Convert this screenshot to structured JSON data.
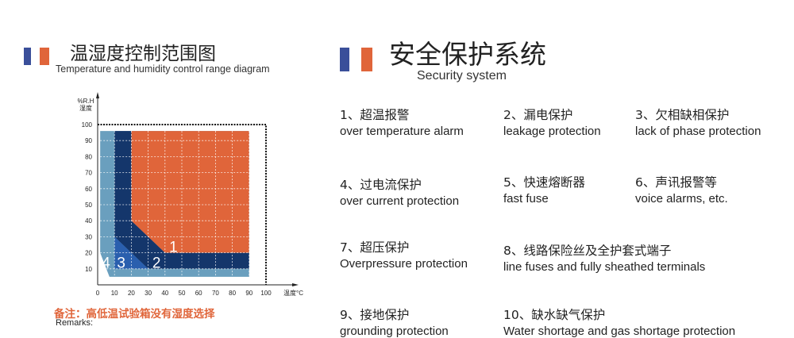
{
  "colors": {
    "blue": "#3a4f9a",
    "orange": "#e0653a",
    "light_blue": "#6a9fbe",
    "navy": "#14366b",
    "mid_blue": "#2a5fae"
  },
  "left_section": {
    "title": "温湿度控制范围图",
    "subtitle": "Temperature and humidity control range diagram",
    "note": "备注：高低温试验箱没有湿度选择",
    "remarks": "Remarks:"
  },
  "right_section": {
    "title": "安全保护系统",
    "subtitle": "Security system",
    "items": [
      {
        "cn": "1、超温报警",
        "en": "over temperature alarm"
      },
      {
        "cn": "2、漏电保护",
        "en": "leakage protection"
      },
      {
        "cn": "3、欠相缺相保护",
        "en": "lack of phase protection"
      },
      {
        "cn": "4、过电流保护",
        "en": "over current protection"
      },
      {
        "cn": "5、快速熔断器",
        "en": "fast fuse"
      },
      {
        "cn": "6、声讯报警等",
        "en": "voice alarms, etc."
      },
      {
        "cn": "7、超压保护",
        "en": "Overpressure protection"
      },
      {
        "cn": "8、线路保险丝及全护套式端子",
        "en": "line fuses and fully sheathed terminals"
      },
      {
        "cn": "9、接地保护",
        "en": "grounding protection"
      },
      {
        "cn": "10、缺水缺气保护",
        "en": "Water shortage and gas shortage protection"
      }
    ]
  },
  "chart_data": {
    "type": "area",
    "ylabel": "%R.H\n湿度",
    "ylabel_lines": [
      "%R.H",
      "湿度"
    ],
    "xlabel": "温度°C",
    "x_ticks": [
      0,
      10,
      20,
      30,
      40,
      50,
      60,
      70,
      80,
      90,
      100
    ],
    "y_ticks": [
      10,
      20,
      30,
      40,
      50,
      60,
      70,
      80,
      90,
      100
    ],
    "xlim": [
      0,
      100
    ],
    "ylim": [
      0,
      100
    ],
    "grid": true,
    "regions": [
      {
        "name": "4",
        "color": "#6a9fbe",
        "points": [
          [
            1.5,
            96
          ],
          [
            90,
            96
          ],
          [
            90,
            5
          ],
          [
            7,
            5
          ],
          [
            1.5,
            20
          ]
        ]
      },
      {
        "name": "1",
        "color": "#e0653a",
        "points": [
          [
            20,
            96
          ],
          [
            90,
            96
          ],
          [
            90,
            20
          ],
          [
            40,
            20
          ],
          [
            20,
            40
          ]
        ]
      },
      {
        "name": "2",
        "color": "#14366b",
        "points": [
          [
            10,
            96
          ],
          [
            20,
            96
          ],
          [
            20,
            40
          ],
          [
            40,
            20
          ],
          [
            90,
            20
          ],
          [
            90,
            10
          ],
          [
            30,
            10
          ],
          [
            10,
            30
          ]
        ]
      },
      {
        "name": "3",
        "color": "#2a5fae",
        "points": [
          [
            10,
            30
          ],
          [
            30,
            10
          ],
          [
            10,
            10
          ]
        ]
      }
    ],
    "region_labels": [
      {
        "text": "1",
        "x": 45,
        "y": 24
      },
      {
        "text": "2",
        "x": 35,
        "y": 14
      },
      {
        "text": "3",
        "x": 14,
        "y": 14
      },
      {
        "text": "4",
        "x": 5,
        "y": 14
      }
    ],
    "dotted_box": {
      "x": 100,
      "y": 100
    }
  }
}
